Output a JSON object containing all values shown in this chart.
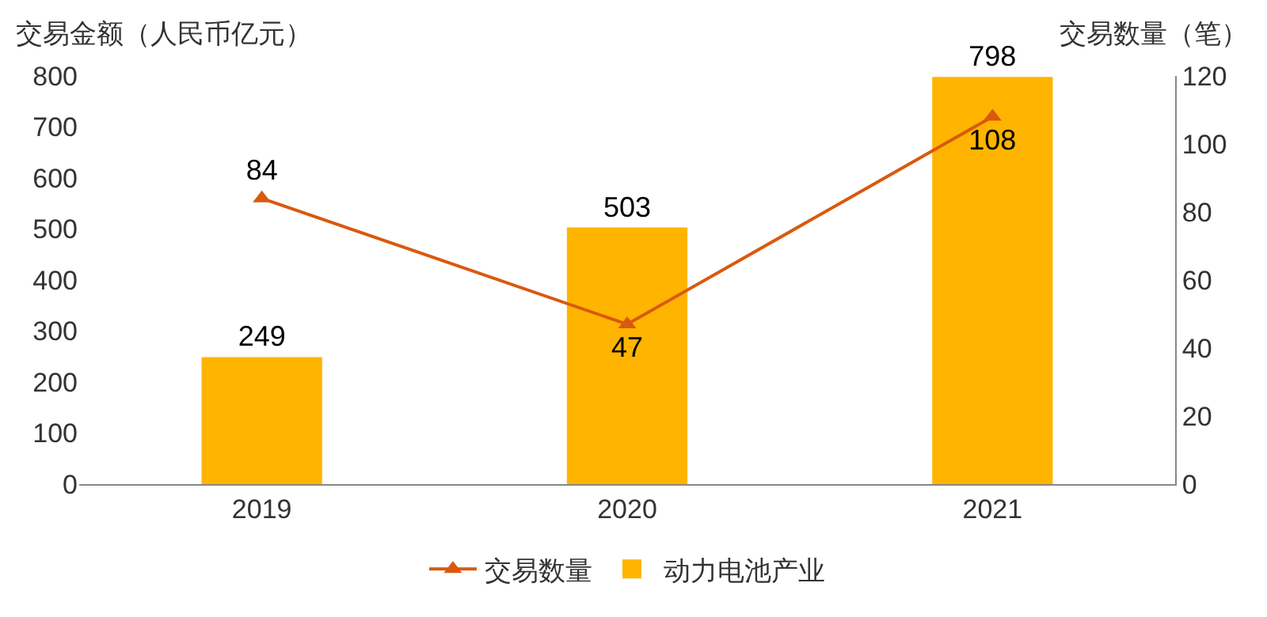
{
  "chart_data": {
    "type": "bar",
    "ylabel": "交易金额（人民币亿元）",
    "y2label": "交易数量（笔）",
    "categories": [
      "2019",
      "2020",
      "2021"
    ],
    "series": [
      {
        "name": "交易数量",
        "type": "line",
        "axis": "y2",
        "color": "#d9590e",
        "marker": "triangle",
        "values": [
          84,
          47,
          108
        ]
      },
      {
        "name": "动力电池产业",
        "color": "#ffb400",
        "values": [
          249,
          503,
          798
        ]
      }
    ],
    "ylim": [
      0,
      800
    ],
    "yticks": [
      0,
      100,
      200,
      300,
      400,
      500,
      600,
      700,
      800
    ],
    "y2lim": [
      0,
      120
    ],
    "y2ticks": [
      0,
      20,
      40,
      60,
      80,
      100,
      120
    ],
    "data_labels": true,
    "legend": "bottom",
    "grid": false
  }
}
